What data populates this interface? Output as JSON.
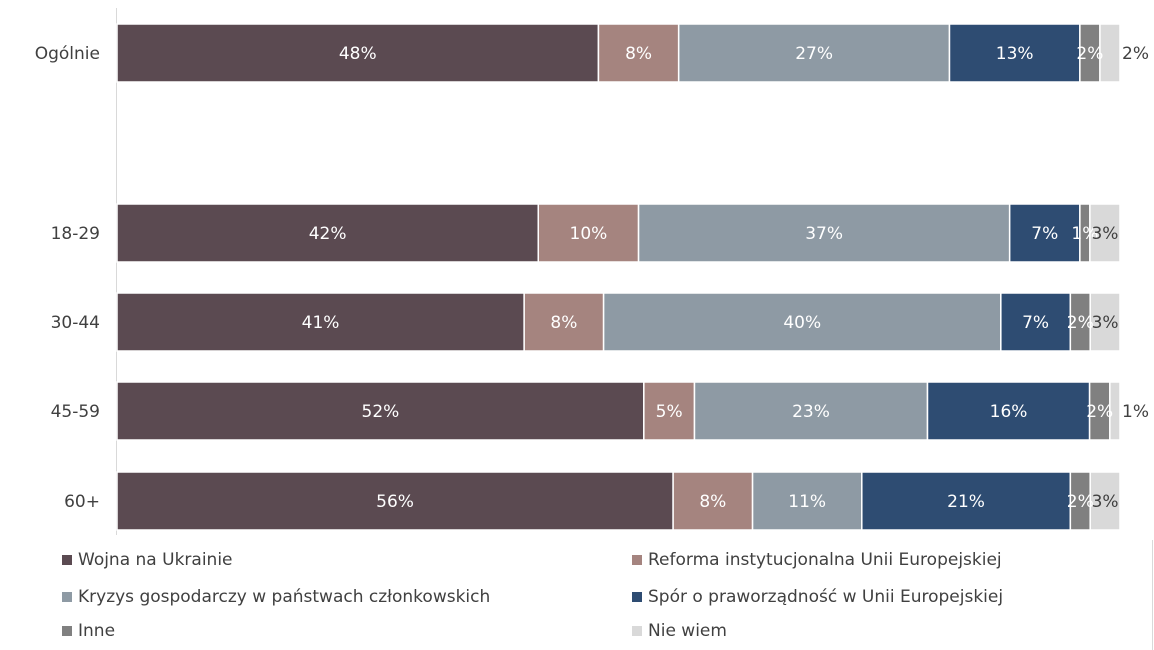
{
  "chart_data": {
    "type": "bar",
    "orientation": "horizontal",
    "stacked": true,
    "categories": [
      "Ogólnie",
      "18-29",
      "30-44",
      "45-59",
      "60+"
    ],
    "series": [
      {
        "name": "Wojna na Ukrainie",
        "color": "#5b4a51",
        "values": [
          48,
          42,
          41,
          52,
          56
        ],
        "labels": [
          "48%",
          "42%",
          "41%",
          "52%",
          "56%"
        ]
      },
      {
        "name": "Reforma instytucjonalna Unii Europejskiej",
        "color": "#a5847f",
        "values": [
          8,
          10,
          8,
          5,
          8
        ],
        "labels": [
          "8%",
          "10%",
          "8%",
          "5%",
          "8%"
        ]
      },
      {
        "name": "Kryzys gospodarczy w państwach członkowskich",
        "color": "#8e9aa4",
        "values": [
          27,
          37,
          40,
          23,
          11
        ],
        "labels": [
          "27%",
          "37%",
          "40%",
          "23%",
          "11%"
        ]
      },
      {
        "name": "Spór o praworządność w Unii Europejskiej",
        "color": "#2e4c72",
        "values": [
          13,
          7,
          7,
          16,
          21
        ],
        "labels": [
          "13%",
          "7%",
          "7%",
          "16%",
          "21%"
        ]
      },
      {
        "name": "Inne",
        "color": "#808080",
        "values": [
          2,
          1,
          2,
          2,
          2
        ],
        "labels": [
          "2%",
          "1%",
          "2%",
          "2%",
          "2%"
        ]
      },
      {
        "name": "Nie wiem",
        "color": "#d9d9d9",
        "values": [
          2,
          3,
          3,
          1,
          3
        ],
        "labels": [
          "2%",
          "3%",
          "3%",
          "1%",
          "3%"
        ]
      }
    ],
    "xlim": [
      0,
      100
    ],
    "title": "",
    "xlabel": "",
    "ylabel": "",
    "grid": false,
    "legend": "bottom"
  }
}
